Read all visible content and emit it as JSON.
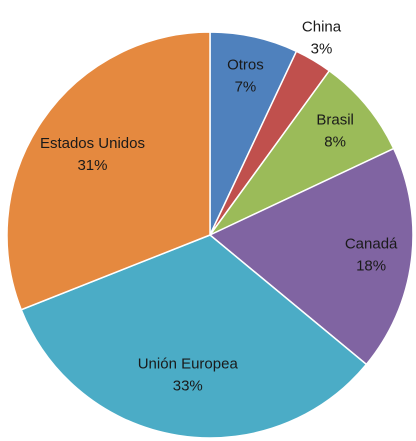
{
  "chart_data": {
    "type": "pie",
    "categories": [
      "Otros",
      "China",
      "Brasil",
      "Canadá",
      "Unión Europea",
      "Estados Unidos"
    ],
    "values": [
      7,
      3,
      8,
      18,
      33,
      31
    ],
    "value_labels": [
      "7%",
      "3%",
      "8%",
      "18%",
      "33%",
      "31%"
    ],
    "colors": [
      "#4f81bd",
      "#c0504d",
      "#9bbb59",
      "#8064a2",
      "#4bacc6",
      "#e5893f"
    ]
  }
}
